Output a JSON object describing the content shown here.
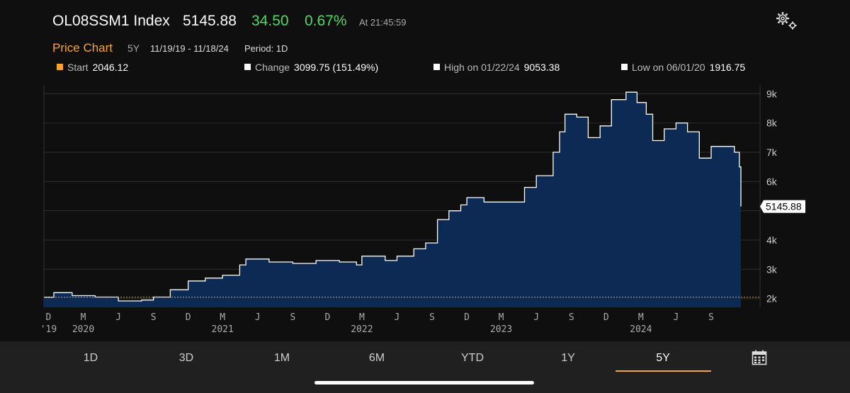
{
  "header": {
    "ticker": "OL08SSM1 Index",
    "price": "5145.88",
    "change": "34.50",
    "change_pct": "0.67%",
    "time": "At 21:45:59",
    "chart_title": "Price Chart",
    "period_label": "5Y",
    "date_range": "11/19/19 - 11/18/24",
    "period": "Period: 1D"
  },
  "stats": {
    "start_label": "Start",
    "start_value": "2046.12",
    "change_label": "Change",
    "change_value": "3099.75 (151.49%)",
    "high_label": "High on 01/22/24",
    "high_value": "9053.38",
    "low_label": "Low on 06/01/20",
    "low_value": "1916.75"
  },
  "tabs": [
    "1D",
    "3D",
    "1M",
    "6M",
    "YTD",
    "1Y",
    "5Y"
  ],
  "active_tab": "5Y",
  "colors": {
    "accent": "#f5a623",
    "positive": "#4cd964",
    "area_fill": "#0d2a55",
    "line": "#ffffff"
  },
  "icons": {
    "settings": "gear-icon",
    "calendar": "calendar-icon"
  },
  "chart_data": {
    "type": "area",
    "x": [
      "2019-11-19",
      "2019-12-15",
      "2020-02-01",
      "2020-04-01",
      "2020-06-01",
      "2020-08-01",
      "2020-09-01",
      "2020-10-15",
      "2020-12-01",
      "2021-01-15",
      "2021-03-01",
      "2021-04-15",
      "2021-05-01",
      "2021-07-01",
      "2021-09-01",
      "2021-11-01",
      "2022-01-01",
      "2022-02-15",
      "2022-03-01",
      "2022-05-01",
      "2022-06-01",
      "2022-07-15",
      "2022-08-15",
      "2022-09-15",
      "2022-10-15",
      "2022-11-15",
      "2022-12-01",
      "2023-01-15",
      "2023-03-01",
      "2023-04-01",
      "2023-05-01",
      "2023-06-01",
      "2023-07-15",
      "2023-08-01",
      "2023-08-15",
      "2023-09-15",
      "2023-10-15",
      "2023-11-15",
      "2023-12-15",
      "2024-01-22",
      "2024-02-20",
      "2024-03-15",
      "2024-04-01",
      "2024-05-01",
      "2024-06-01",
      "2024-07-01",
      "2024-08-01",
      "2024-09-01",
      "2024-10-01",
      "2024-11-01",
      "2024-11-14",
      "2024-11-18"
    ],
    "values": [
      2046,
      2200,
      2100,
      2050,
      1917,
      1950,
      2050,
      2300,
      2600,
      2700,
      2800,
      3150,
      3350,
      3250,
      3200,
      3300,
      3250,
      3150,
      3450,
      3300,
      3450,
      3700,
      3900,
      4700,
      5000,
      5200,
      5450,
      5300,
      5300,
      5300,
      5800,
      6200,
      7000,
      7700,
      8300,
      8200,
      7500,
      7900,
      8800,
      9053,
      8700,
      8300,
      7400,
      7800,
      8000,
      7700,
      6800,
      7200,
      7200,
      7000,
      6500,
      5146
    ],
    "ylim": [
      1700,
      9300
    ],
    "yticks": [
      2000,
      3000,
      4000,
      5000,
      6000,
      7000,
      8000,
      9000
    ],
    "ytick_labels": [
      "2k",
      "3k",
      "4k",
      "",
      "6k",
      "7k",
      "8k",
      "9k"
    ],
    "last_value_label": "5145.88",
    "start_value": 2046.12,
    "xtick_dates": [
      "2019-12-01",
      "2020-03-01",
      "2020-06-01",
      "2020-09-01",
      "2020-12-01",
      "2021-03-01",
      "2021-06-01",
      "2021-09-01",
      "2021-12-01",
      "2022-03-01",
      "2022-06-01",
      "2022-09-01",
      "2022-12-01",
      "2023-03-01",
      "2023-06-01",
      "2023-09-01",
      "2023-12-01",
      "2024-03-01",
      "2024-06-01",
      "2024-09-01"
    ],
    "xtick_labels": [
      "D",
      "M",
      "J",
      "S",
      "D",
      "M",
      "J",
      "S",
      "D",
      "M",
      "J",
      "S",
      "D",
      "M",
      "J",
      "S",
      "D",
      "M",
      "J",
      "S"
    ],
    "year_dates": [
      "2019-12-01",
      "2020-03-01",
      "2021-03-01",
      "2022-03-01",
      "2023-03-01",
      "2024-03-01"
    ],
    "year_labels": [
      "'19",
      "2020",
      "2021",
      "2022",
      "2023",
      "2024"
    ],
    "grid": true
  }
}
